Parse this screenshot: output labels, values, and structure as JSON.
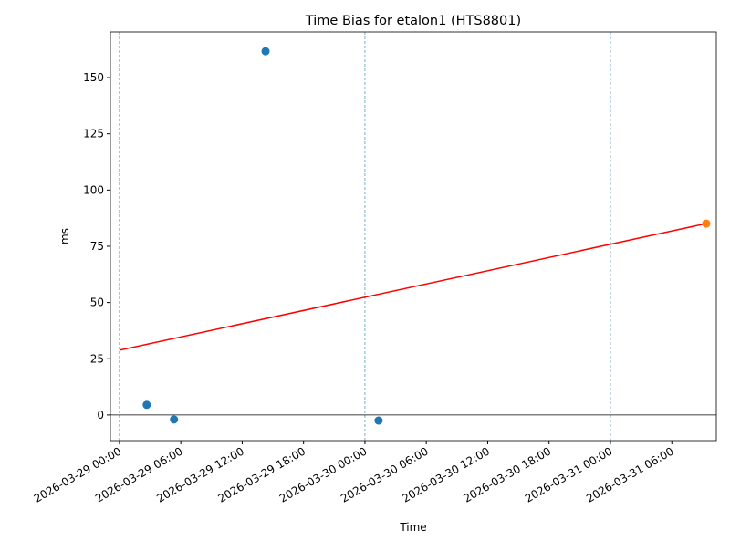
{
  "chart_data": {
    "type": "scatter",
    "title": "Time Bias for etalon1 (HTS8801)",
    "xlabel": "Time",
    "ylabel": "ms",
    "xlim": [
      "2026-03-28 23:07",
      "2026-03-31 10:21"
    ],
    "xticks": [
      "2026-03-29 00:00",
      "2026-03-29 06:00",
      "2026-03-29 12:00",
      "2026-03-29 18:00",
      "2026-03-30 00:00",
      "2026-03-30 06:00",
      "2026-03-30 12:00",
      "2026-03-30 18:00",
      "2026-03-31 00:00",
      "2026-03-31 06:00"
    ],
    "ylim": [
      -11.4,
      170.3
    ],
    "yticks": [
      0,
      25,
      50,
      75,
      100,
      125,
      150
    ],
    "series": [
      {
        "type": "scatter",
        "color": "#1f77b4",
        "x": [
          "2026-03-29 02:40",
          "2026-03-29 05:20",
          "2026-03-29 14:17",
          "2026-03-30 01:20"
        ],
        "values": [
          4.5,
          -2,
          161.7,
          -2.5
        ]
      },
      {
        "type": "scatter",
        "color": "#ff7f0e",
        "x": [
          "2026-03-31 09:22"
        ],
        "values": [
          85.1
        ]
      },
      {
        "type": "line",
        "color": "#ff0000",
        "x": [
          "2026-03-29 00:00",
          "2026-03-31 09:22"
        ],
        "values": [
          28.8,
          85.1
        ]
      }
    ],
    "vlines": {
      "color": "#1f77b4",
      "x": [
        "2026-03-29 00:00",
        "2026-03-30 00:00",
        "2026-03-31 00:00"
      ]
    },
    "hlines": {
      "color": "#000000",
      "values": [
        0
      ]
    }
  }
}
